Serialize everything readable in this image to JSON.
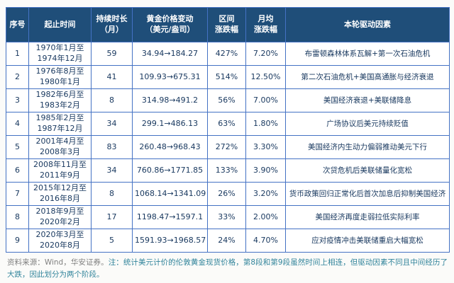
{
  "chart_data": {
    "type": "table",
    "title": "",
    "columns": [
      "序号",
      "起止时间",
      "持续时长\n（月）",
      "黄金价格变动\n（美元/盎司）",
      "区间\n涨跌幅",
      "月均\n涨跌幅",
      "本轮驱动因素"
    ],
    "rows": [
      [
        "1",
        "1970年1月至\n1974年12月",
        "59",
        "34.94→184.27",
        "427%",
        "7.20%",
        "布雷顿森林体系瓦解+第一次石油危机"
      ],
      [
        "2",
        "1976年8月至\n1980年1月",
        "41",
        "109.93→675.31",
        "514%",
        "12.50%",
        "第二次石油危机+美国高通胀与经济衰退"
      ],
      [
        "3",
        "1982年6月至\n1983年2月",
        "8",
        "314.98→491.2",
        "56%",
        "7.00%",
        "美国经济衰退+美联储降息"
      ],
      [
        "4",
        "1985年2月至\n1987年12月",
        "34",
        "299.1→486.13",
        "63%",
        "1.80%",
        "广场协议后美元持续贬值"
      ],
      [
        "5",
        "2001年4月至\n2008年3月",
        "83",
        "260.48→968.43",
        "272%",
        "3.30%",
        "美国经济内生动力偏弱推动美元下行"
      ],
      [
        "6",
        "2008年11月至\n2011年9月",
        "34",
        "760.86→1771.85",
        "133%",
        "3.90%",
        "次贷危机后美联储量化宽松"
      ],
      [
        "7",
        "2015年12月至\n2016年8月",
        "8",
        "1068.14→1341.09",
        "26%",
        "3.20%",
        "货币政策回归正常化后首次加息后抑制美国经济"
      ],
      [
        "8",
        "2018年9月至\n2020年2月",
        "17",
        "1198.47→1597.1",
        "33%",
        "2.00%",
        "美国经济再度走弱拉低实际利率"
      ],
      [
        "9",
        "2020年3月至\n2020年8月",
        "5",
        "1591.93→1968.57",
        "24%",
        "4.70%",
        "应对疫情冲击美联储重启大幅宽松"
      ]
    ]
  },
  "footnote": {
    "source": "资料来源：Wind，华安证券。",
    "note": "注：统计美元计价的伦敦黄金现货价格，第8段和第9段虽然时间上相连，但驱动因素不同且中间经历了大跌，因此划分为两个阶段。"
  },
  "colors": {
    "header_bg": "#1F4E79",
    "border": "#4472C4",
    "cell_text": "#17375E",
    "source_text": "#808080",
    "note_text": "#31849B"
  }
}
